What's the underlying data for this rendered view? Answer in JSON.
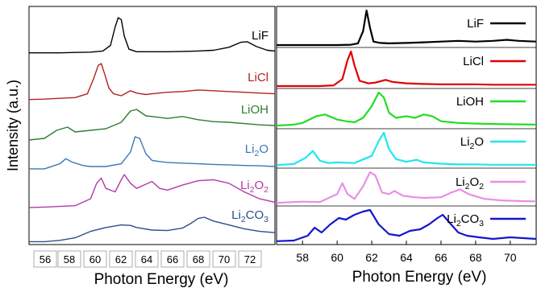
{
  "left_panel": {
    "ylabel": "Intensity (a.u.)",
    "xlabel": "Photon Energy (eV)",
    "ticks": [
      "56",
      "58",
      "60",
      "62",
      "64",
      "66",
      "68",
      "70",
      "72"
    ]
  },
  "right_panel": {
    "xlabel": "Photon Energy (eV)",
    "ticks": [
      "58",
      "60",
      "62",
      "64",
      "66",
      "68",
      "70"
    ]
  },
  "colors": {
    "LiF": "#000000",
    "LiCl": "#b22222",
    "LiOH": "#2e7d32",
    "Li2O": "#3a78b5",
    "Li2O2": "#b23aa6",
    "Li2CO3": "#2b4f8a",
    "right_LiF": "#000000",
    "right_LiCl": "#e00000",
    "right_LiOH": "#22dd22",
    "right_Li2O": "#22e6ee",
    "right_Li2O2": "#e98ee6",
    "right_Li2CO3": "#1515cc"
  },
  "legend_right": [
    {
      "base": "LiF",
      "sub": "",
      "tail": ""
    },
    {
      "base": "LiCl",
      "sub": "",
      "tail": ""
    },
    {
      "base": "LiOH",
      "sub": "",
      "tail": ""
    },
    {
      "base": "Li",
      "sub": "2",
      "tail": "O"
    },
    {
      "base": "Li",
      "sub": "2",
      "tail": "O",
      "sub2": "2"
    },
    {
      "base": "Li",
      "sub": "2",
      "tail": "CO",
      "sub2": "3"
    }
  ],
  "labels_left": [
    {
      "base": "LiF",
      "sub": "",
      "tail": ""
    },
    {
      "base": "LiCl",
      "sub": "",
      "tail": ""
    },
    {
      "base": "LiOH",
      "sub": "",
      "tail": ""
    },
    {
      "base": "Li",
      "sub": "2",
      "tail": "O"
    },
    {
      "base": "Li",
      "sub": "2",
      "tail": "O",
      "sub2": "2"
    },
    {
      "base": "Li",
      "sub": "2",
      "tail": "CO",
      "sub2": "3"
    }
  ],
  "chart_data": [
    {
      "type": "line",
      "title": "",
      "xlabel": "Photon Energy (eV)",
      "ylabel": "Intensity (a.u.)",
      "xlim": [
        56,
        72
      ],
      "series": [
        {
          "name": "LiF",
          "x": [
            55.5,
            57,
            58,
            59,
            60,
            60.8,
            61.3,
            61.6,
            61.8,
            62.0,
            62.2,
            62.5,
            63,
            64,
            65,
            66,
            67,
            68,
            69,
            69.8,
            70.2,
            70.8,
            71.5,
            72
          ],
          "y": [
            0.05,
            0.05,
            0.05,
            0.06,
            0.07,
            0.1,
            0.25,
            0.75,
            1.0,
            0.95,
            0.5,
            0.15,
            0.08,
            0.08,
            0.08,
            0.09,
            0.1,
            0.12,
            0.2,
            0.34,
            0.35,
            0.22,
            0.12,
            0.1
          ]
        },
        {
          "name": "LiCl",
          "x": [
            55.5,
            57,
            58,
            59,
            59.8,
            60.2,
            60.5,
            60.7,
            60.9,
            61.2,
            61.5,
            62,
            62.6,
            63,
            63.6,
            64,
            65,
            66,
            67,
            68,
            69,
            70,
            71,
            72
          ],
          "y": [
            0.05,
            0.06,
            0.08,
            0.1,
            0.2,
            0.6,
            0.95,
            1.0,
            0.75,
            0.35,
            0.2,
            0.15,
            0.28,
            0.22,
            0.18,
            0.2,
            0.24,
            0.26,
            0.3,
            0.28,
            0.26,
            0.24,
            0.22,
            0.2
          ]
        },
        {
          "name": "LiOH",
          "x": [
            55.5,
            57,
            57.8,
            58.5,
            59,
            60,
            61,
            62,
            62.6,
            63,
            63.6,
            64,
            65,
            66,
            67,
            68,
            69,
            70,
            71,
            72
          ],
          "y": [
            0.05,
            0.1,
            0.35,
            0.45,
            0.3,
            0.35,
            0.4,
            0.6,
            0.95,
            1.0,
            0.8,
            0.78,
            0.72,
            0.78,
            0.68,
            0.62,
            0.6,
            0.56,
            0.52,
            0.5
          ]
        },
        {
          "name": "Li2O",
          "x": [
            55.5,
            57,
            58,
            58.4,
            58.8,
            59.5,
            60,
            61,
            62,
            62.6,
            62.9,
            63.2,
            63.6,
            64,
            64.6,
            65,
            66,
            67,
            68,
            69,
            70,
            71,
            72
          ],
          "y": [
            0.05,
            0.05,
            0.2,
            0.35,
            0.25,
            0.15,
            0.12,
            0.12,
            0.2,
            0.55,
            1.0,
            0.95,
            0.5,
            0.3,
            0.26,
            0.24,
            0.22,
            0.2,
            0.18,
            0.17,
            0.15,
            0.14,
            0.12
          ]
        },
        {
          "name": "Li2O2",
          "x": [
            55.5,
            57,
            58,
            59,
            60,
            60.4,
            60.7,
            61,
            61.6,
            62,
            62.2,
            62.6,
            63,
            63.6,
            64,
            64.5,
            65,
            66,
            67,
            68,
            69,
            70,
            71,
            72
          ],
          "y": [
            0.05,
            0.06,
            0.08,
            0.1,
            0.3,
            0.75,
            0.9,
            0.6,
            0.5,
            0.85,
            1.0,
            0.75,
            0.6,
            0.72,
            0.8,
            0.6,
            0.55,
            0.7,
            0.82,
            0.85,
            0.75,
            0.5,
            0.3,
            0.2
          ]
        },
        {
          "name": "Li2CO3",
          "x": [
            55.5,
            57,
            58,
            59,
            60,
            61,
            62,
            62.6,
            63,
            64,
            65,
            66,
            66.5,
            67,
            67.4,
            68,
            69,
            70,
            71,
            72
          ],
          "y": [
            0.05,
            0.05,
            0.1,
            0.2,
            0.45,
            0.6,
            0.7,
            0.68,
            0.6,
            0.5,
            0.48,
            0.58,
            0.75,
            0.95,
            1.0,
            0.85,
            0.7,
            0.55,
            0.45,
            0.4
          ]
        }
      ]
    },
    {
      "type": "line",
      "title": "",
      "xlabel": "Photon Energy (eV)",
      "xlim": [
        56.5,
        71.5
      ],
      "series": [
        {
          "name": "LiF",
          "x": [
            56.5,
            59,
            60,
            60.8,
            61.2,
            61.5,
            61.7,
            61.9,
            62.1,
            62.5,
            63,
            64,
            65,
            66,
            67,
            68,
            69,
            69.8,
            70.5,
            71.5
          ],
          "y": [
            0.0,
            0.0,
            0.0,
            0.01,
            0.05,
            0.4,
            1.0,
            0.5,
            0.1,
            0.06,
            0.05,
            0.06,
            0.08,
            0.1,
            0.12,
            0.1,
            0.12,
            0.15,
            0.12,
            0.1
          ]
        },
        {
          "name": "LiCl",
          "x": [
            56.5,
            59,
            59.8,
            60.3,
            60.6,
            60.8,
            61,
            61.3,
            61.8,
            62.2,
            62.8,
            63.2,
            64,
            65,
            66,
            67,
            68,
            69,
            70,
            71.5
          ],
          "y": [
            0.0,
            0.0,
            0.02,
            0.2,
            0.75,
            1.0,
            0.6,
            0.15,
            0.08,
            0.1,
            0.18,
            0.12,
            0.08,
            0.06,
            0.05,
            0.05,
            0.05,
            0.04,
            0.04,
            0.04
          ]
        },
        {
          "name": "LiOH",
          "x": [
            56.5,
            57.5,
            58,
            58.8,
            59.3,
            60,
            60.5,
            61,
            61.5,
            62,
            62.4,
            62.7,
            63,
            63.4,
            64,
            64.5,
            65,
            65.5,
            66,
            67,
            68,
            69,
            70,
            71.5
          ],
          "y": [
            0.02,
            0.05,
            0.1,
            0.3,
            0.35,
            0.2,
            0.15,
            0.12,
            0.25,
            0.6,
            1.0,
            0.85,
            0.4,
            0.25,
            0.3,
            0.25,
            0.35,
            0.3,
            0.15,
            0.1,
            0.08,
            0.07,
            0.06,
            0.05
          ]
        },
        {
          "name": "Li2O",
          "x": [
            56.5,
            57.5,
            58.2,
            58.6,
            59,
            59.5,
            60,
            61,
            62,
            62.4,
            62.7,
            63,
            63.4,
            64,
            64.6,
            65,
            66,
            67,
            68,
            69,
            70,
            71.5
          ],
          "y": [
            0.02,
            0.05,
            0.25,
            0.45,
            0.15,
            0.08,
            0.1,
            0.08,
            0.3,
            0.75,
            1.0,
            0.5,
            0.2,
            0.12,
            0.18,
            0.1,
            0.06,
            0.04,
            0.04,
            0.03,
            0.03,
            0.03
          ]
        },
        {
          "name": "Li2O2",
          "x": [
            56.5,
            57.5,
            58,
            59,
            60,
            60.3,
            60.6,
            61,
            61.5,
            61.9,
            62.2,
            62.6,
            63,
            63.3,
            63.8,
            64.5,
            65,
            66,
            66.6,
            67.1,
            67.6,
            68.5,
            69.5,
            70.5,
            71.5
          ],
          "y": [
            0.02,
            0.05,
            0.06,
            0.05,
            0.3,
            0.65,
            0.3,
            0.15,
            0.55,
            1.0,
            0.9,
            0.35,
            0.3,
            0.4,
            0.25,
            0.2,
            0.18,
            0.2,
            0.35,
            0.45,
            0.3,
            0.15,
            0.1,
            0.08,
            0.07
          ]
        },
        {
          "name": "Li2CO3",
          "x": [
            56.5,
            57.5,
            58.3,
            58.7,
            59.1,
            59.6,
            60.1,
            60.5,
            61,
            61.5,
            61.9,
            62.4,
            63,
            63.6,
            64.2,
            64.8,
            65.3,
            65.8,
            66.1,
            66.5,
            67,
            67.5,
            68.2,
            69,
            70,
            71.5
          ],
          "y": [
            0.03,
            0.05,
            0.2,
            0.45,
            0.3,
            0.55,
            0.75,
            0.7,
            0.85,
            0.95,
            1.0,
            0.55,
            0.25,
            0.2,
            0.35,
            0.4,
            0.55,
            0.75,
            0.85,
            0.6,
            0.3,
            0.2,
            0.15,
            0.1,
            0.15,
            0.1
          ]
        }
      ]
    }
  ]
}
